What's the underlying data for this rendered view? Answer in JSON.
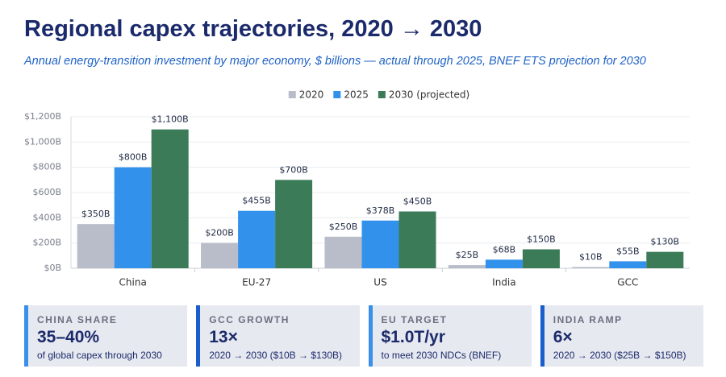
{
  "chart_data": {
    "type": "bar",
    "title": "Regional capex trajectories, 2020 → 2030",
    "subtitle": "Annual energy-transition investment by major economy, $ billions — actual through 2025, BNEF ETS projection for 2030",
    "categories": [
      "China",
      "EU-27",
      "US",
      "India",
      "GCC"
    ],
    "series": [
      {
        "name": "2020",
        "color": "#b9bcc9",
        "values": [
          350,
          200,
          250,
          25,
          10
        ],
        "value_labels": [
          "$350B",
          "$200B",
          "$250B",
          "$25B",
          "$10B"
        ]
      },
      {
        "name": "2025",
        "color": "#3291ea",
        "values": [
          800,
          455,
          378,
          68,
          55
        ],
        "value_labels": [
          "$800B",
          "$455B",
          "$378B",
          "$68B",
          "$55B"
        ]
      },
      {
        "name": "2030 (projected)",
        "color": "#3b7b58",
        "values": [
          1100,
          700,
          450,
          150,
          130
        ],
        "value_labels": [
          "$1,100B",
          "$700B",
          "$450B",
          "$150B",
          "$130B"
        ]
      }
    ],
    "ylim": [
      0,
      1200
    ],
    "yticks": [
      {
        "value": 0,
        "label": "$0B"
      },
      {
        "value": 200,
        "label": "$200B"
      },
      {
        "value": 400,
        "label": "$400B"
      },
      {
        "value": 600,
        "label": "$600B"
      },
      {
        "value": 800,
        "label": "$800B"
      },
      {
        "value": 1000,
        "label": "$1,000B"
      },
      {
        "value": 1200,
        "label": "$1,200B"
      }
    ],
    "grid": true,
    "legend": "top"
  },
  "cards": [
    {
      "label": "CHINA SHARE",
      "value": "35–40%",
      "note": "of global capex through 2030"
    },
    {
      "label": "GCC GROWTH",
      "value": "13×",
      "note": "2020 → 2030 ($10B → $130B)"
    },
    {
      "label": "EU TARGET",
      "value": "$1.0T/yr",
      "note": "to meet 2030 NDCs (BNEF)"
    },
    {
      "label": "INDIA RAMP",
      "value": "6×",
      "note": "2020 → 2030 ($25B → $150B)"
    }
  ]
}
